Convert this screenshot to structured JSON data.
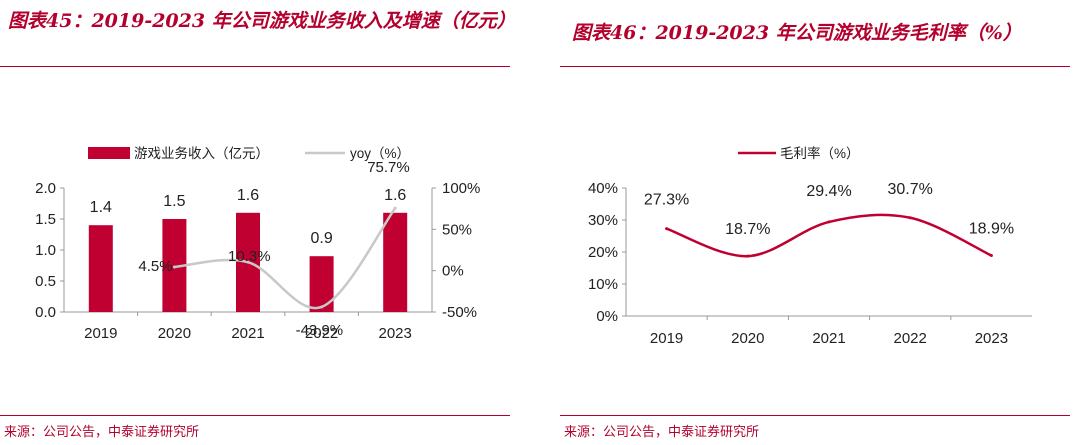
{
  "colors": {
    "accent": "#b3002d",
    "bar": "#c00030",
    "yoy_line": "#c8c8c8",
    "margin_line": "#c00030"
  },
  "left": {
    "title": "图表45：2019-2023 年公司游戏业务收入及增速（亿元）",
    "source": "来源：公司公告，中泰证券研究所"
  },
  "right": {
    "title": "图表46：2019-2023 年公司游戏业务毛利率（%）",
    "source": "来源：公司公告，中泰证券研究所"
  },
  "chart_data": [
    {
      "type": "bar",
      "title": "2019-2023 年公司游戏业务收入及增速（亿元）",
      "categories": [
        "2019",
        "2020",
        "2021",
        "2022",
        "2023"
      ],
      "series": [
        {
          "name": "游戏业务收入（亿元）",
          "type": "bar",
          "axis": "left",
          "values": [
            1.4,
            1.5,
            1.6,
            0.9,
            1.6
          ],
          "labels": [
            "1.4",
            "1.5",
            "1.6",
            "0.9",
            "1.6"
          ]
        },
        {
          "name": "yoy（%）",
          "type": "line",
          "axis": "right",
          "values": [
            null,
            4.5,
            10.3,
            -43.9,
            75.7
          ],
          "labels": [
            "",
            "4.5%",
            "10.3%",
            "-43.9%",
            "75.7%"
          ]
        }
      ],
      "ylim_left": [
        0,
        2.0
      ],
      "yticks_left": [
        "0.0",
        "0.5",
        "1.0",
        "1.5",
        "2.0"
      ],
      "ylim_right": [
        -50,
        100
      ],
      "yticks_right": [
        "-50%",
        "0%",
        "50%",
        "100%"
      ],
      "legend": "top"
    },
    {
      "type": "line",
      "title": "2019-2023 年公司游戏业务毛利率（%）",
      "categories": [
        "2019",
        "2020",
        "2021",
        "2022",
        "2023"
      ],
      "series": [
        {
          "name": "毛利率（%）",
          "values": [
            27.3,
            18.7,
            29.4,
            30.7,
            18.9
          ],
          "labels": [
            "27.3%",
            "18.7%",
            "29.4%",
            "30.7%",
            "18.9%"
          ]
        }
      ],
      "ylim": [
        0,
        40
      ],
      "yticks": [
        "0%",
        "10%",
        "20%",
        "30%",
        "40%"
      ],
      "legend": "top"
    }
  ]
}
